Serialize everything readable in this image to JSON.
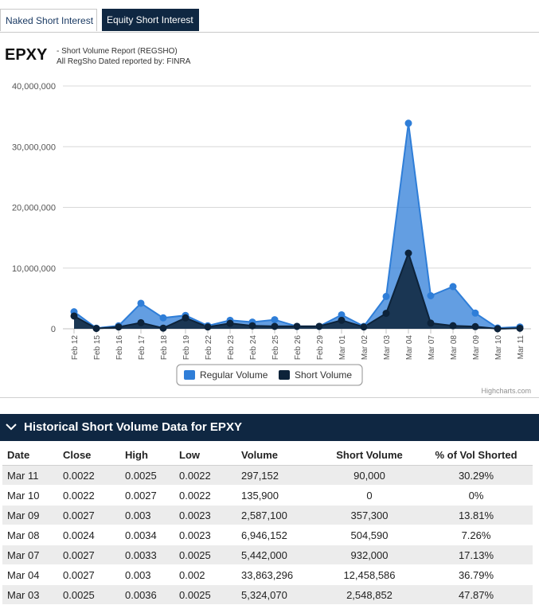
{
  "tabs": {
    "naked": "Naked Short Interest",
    "equity": "Equity Short Interest"
  },
  "header": {
    "ticker": "EPXY",
    "report": "- Short Volume Report  (REGSHO)",
    "reported_by": "All RegSho Dated reported by: FINRA"
  },
  "chart_data": {
    "type": "area",
    "categories": [
      "Feb 12",
      "Feb 15",
      "Feb 16",
      "Feb 17",
      "Feb 18",
      "Feb 19",
      "Feb 22",
      "Feb 23",
      "Feb 24",
      "Feb 25",
      "Feb 26",
      "Feb 29",
      "Mar 01",
      "Mar 02",
      "Mar 03",
      "Mar 04",
      "Mar 07",
      "Mar 08",
      "Mar 09",
      "Mar 10",
      "Mar 11"
    ],
    "series": [
      {
        "name": "Regular Volume",
        "color": "#2f7ed8",
        "values": [
          2800000,
          100000,
          500000,
          4200000,
          1800000,
          2200000,
          500000,
          1400000,
          1100000,
          1500000,
          400000,
          400000,
          2300000,
          400000,
          5324070,
          33863296,
          5442000,
          6946152,
          2587100,
          135900,
          297152
        ]
      },
      {
        "name": "Short Volume",
        "color": "#0d233a",
        "values": [
          2100000,
          50000,
          300000,
          1000000,
          100000,
          1800000,
          300000,
          900000,
          500000,
          400000,
          400000,
          400000,
          1400000,
          300000,
          2548852,
          12458586,
          932000,
          504590,
          357300,
          0,
          90000
        ]
      }
    ],
    "y_ticks": [
      "0",
      "10,000,000",
      "20,000,000",
      "30,000,000",
      "40,000,000"
    ],
    "ylim": [
      0,
      40000000
    ],
    "title": "",
    "xlabel": "",
    "ylabel": "",
    "credits": "Highcharts.com"
  },
  "historical": {
    "title": "Historical Short Volume Data for EPXY",
    "columns": [
      "Date",
      "Close",
      "High",
      "Low",
      "Volume",
      "Short Volume",
      "% of Vol Shorted"
    ],
    "rows": [
      [
        "Mar 11",
        "0.0022",
        "0.0025",
        "0.0022",
        "297,152",
        "90,000",
        "30.29%"
      ],
      [
        "Mar 10",
        "0.0022",
        "0.0027",
        "0.0022",
        "135,900",
        "0",
        "0%"
      ],
      [
        "Mar 09",
        "0.0027",
        "0.003",
        "0.0023",
        "2,587,100",
        "357,300",
        "13.81%"
      ],
      [
        "Mar 08",
        "0.0024",
        "0.0034",
        "0.0023",
        "6,946,152",
        "504,590",
        "7.26%"
      ],
      [
        "Mar 07",
        "0.0027",
        "0.0033",
        "0.0025",
        "5,442,000",
        "932,000",
        "17.13%"
      ],
      [
        "Mar 04",
        "0.0027",
        "0.003",
        "0.002",
        "33,863,296",
        "12,458,586",
        "36.79%"
      ],
      [
        "Mar 03",
        "0.0025",
        "0.0036",
        "0.0025",
        "5,324,070",
        "2,548,852",
        "47.87%"
      ]
    ]
  }
}
